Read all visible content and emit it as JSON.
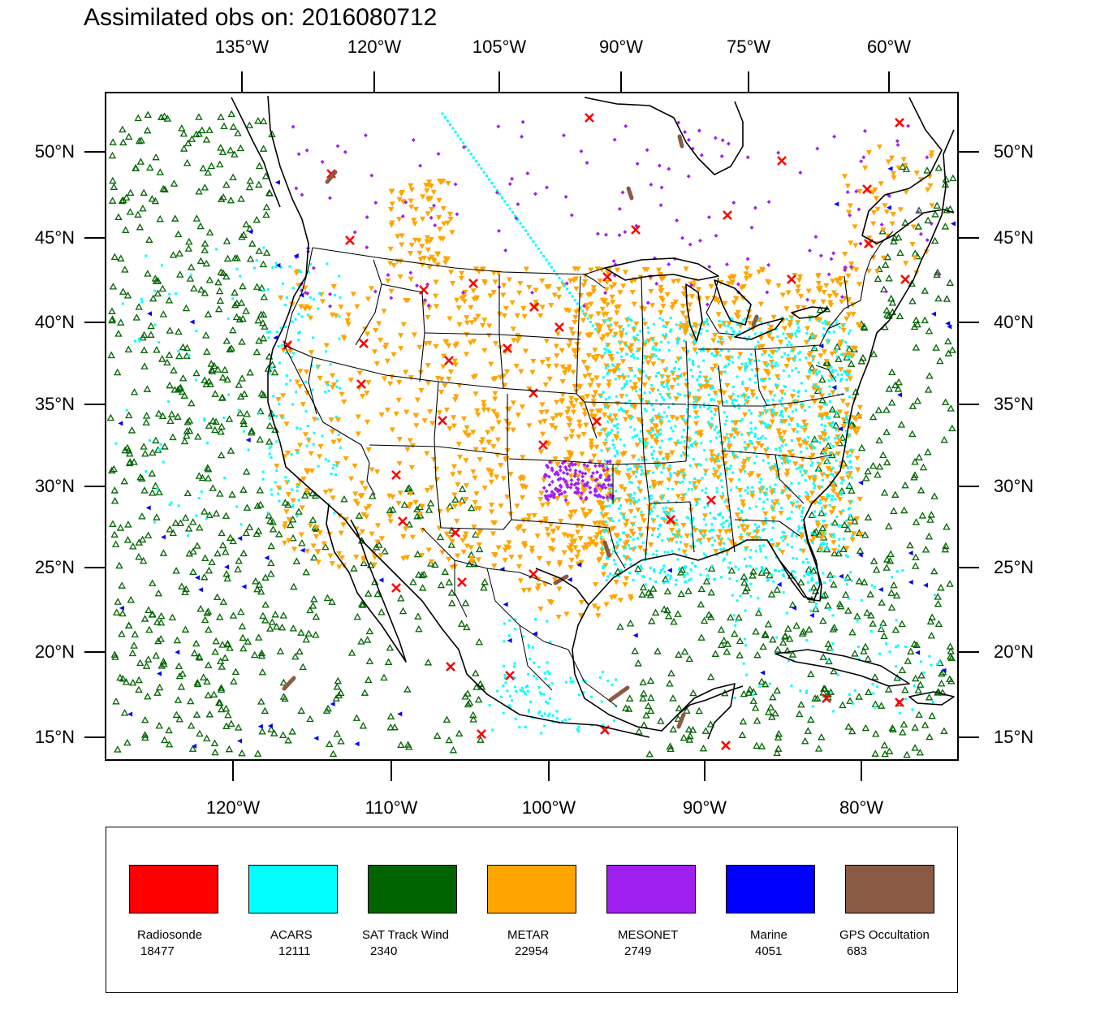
{
  "title": "Assimilated obs on: 2016080712",
  "map": {
    "top_lon_labels": [
      "135°W",
      "120°W",
      "105°W",
      "90°W",
      "75°W",
      "60°W"
    ],
    "bottom_lon_labels": [
      "120°W",
      "110°W",
      "100°W",
      "90°W",
      "80°W"
    ],
    "lat_labels": [
      "50°N",
      "45°N",
      "40°N",
      "35°N",
      "30°N",
      "25°N",
      "20°N",
      "15°N"
    ],
    "extent": {
      "lon_min": -128,
      "lon_max": -73,
      "lat_min": 14,
      "lat_max": 53
    },
    "background": "#ffffff",
    "line_color": "#000000"
  },
  "legend": {
    "items": [
      {
        "name": "Radiosonde",
        "count": "18477",
        "color": "#ff0000",
        "marker": "x-icon"
      },
      {
        "name": "ACARS",
        "count": "12111",
        "color": "#00ffff",
        "marker": "square-dot-icon"
      },
      {
        "name": "SAT Track Wind",
        "count": "2340",
        "color": "#006400",
        "marker": "triangle-up-icon"
      },
      {
        "name": "METAR",
        "count": "22954",
        "color": "#ffa500",
        "marker": "triangle-down-icon"
      },
      {
        "name": "MESONET",
        "count": "2749",
        "color": "#a020f0",
        "marker": "diamond-icon"
      },
      {
        "name": "Marine",
        "count": "4051",
        "color": "#0000ff",
        "marker": "triangle-left-icon"
      },
      {
        "name": "GPS Occultation",
        "count": "683",
        "color": "#8b5a44",
        "marker": "track-segment-icon"
      }
    ]
  }
}
